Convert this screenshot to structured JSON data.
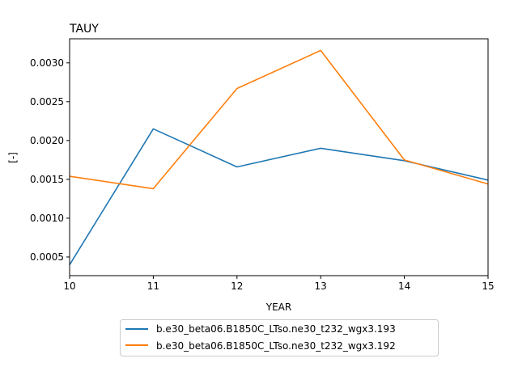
{
  "chart_data": {
    "type": "line",
    "title": "TAUY",
    "xlabel": "YEAR",
    "ylabel": "[-]",
    "xlim": [
      10,
      15
    ],
    "ylim": [
      0.00026,
      0.00331
    ],
    "x_ticks": [
      "10",
      "11",
      "12",
      "13",
      "14",
      "15"
    ],
    "y_ticks": [
      "0.0005",
      "0.0010",
      "0.0015",
      "0.0020",
      "0.0025",
      "0.0030"
    ],
    "grid": false,
    "legend_position": "below-center",
    "series": [
      {
        "name": "b.e30_beta06.B1850C_LTso.ne30_t232_wgx3.193",
        "color": "#1f77b4",
        "x": [
          10,
          11,
          12,
          13,
          14,
          15
        ],
        "values": [
          0.0004,
          0.00215,
          0.00166,
          0.0019,
          0.00174,
          0.00149
        ]
      },
      {
        "name": "b.e30_beta06.B1850C_LTso.ne30_t232_wgx3.192",
        "color": "#ff7f0e",
        "x": [
          10,
          11,
          12,
          13,
          14,
          15
        ],
        "values": [
          0.00154,
          0.00138,
          0.00267,
          0.00316,
          0.00175,
          0.00144
        ]
      }
    ]
  }
}
